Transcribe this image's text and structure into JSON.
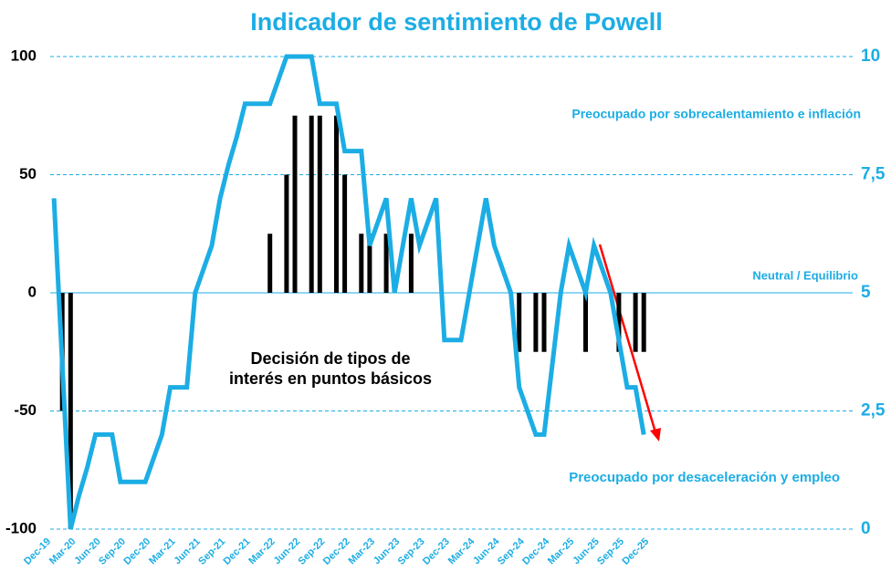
{
  "chart_data": {
    "type": "combo",
    "title": "Indicador de sentimiento de Powell",
    "categories": [
      "Dec-19",
      null,
      null,
      "Mar-20",
      null,
      null,
      "Jun-20",
      null,
      null,
      "Sep-20",
      null,
      null,
      "Dec-20",
      null,
      null,
      "Mar-21",
      null,
      null,
      "Jun-21",
      null,
      null,
      "Sep-21",
      null,
      null,
      "Dec-21",
      null,
      null,
      "Mar-22",
      null,
      null,
      "Jun-22",
      null,
      null,
      "Sep-22",
      null,
      null,
      "Dec-22",
      null,
      null,
      "Mar-23",
      null,
      null,
      "Jun-23",
      null,
      null,
      "Sep-23",
      null,
      null,
      "Dec-23",
      null,
      null,
      "Mar-24",
      null,
      null,
      "Jun-24",
      null,
      null,
      "Sep-24",
      null,
      null,
      "Dec-24",
      null,
      null,
      "Mar-25",
      null,
      null,
      "Jun-25",
      null,
      null,
      "Sep-25",
      null,
      null,
      "Dec-25"
    ],
    "series": [
      {
        "type": "bar",
        "color": "#000000",
        "values": [
          null,
          null,
          -50,
          -100,
          null,
          null,
          null,
          null,
          null,
          null,
          null,
          null,
          null,
          null,
          null,
          null,
          null,
          null,
          null,
          null,
          null,
          null,
          null,
          null,
          null,
          null,
          null,
          25,
          null,
          50,
          75,
          null,
          75,
          75,
          null,
          75,
          50,
          null,
          25,
          25,
          null,
          25,
          null,
          null,
          25,
          null,
          null,
          null,
          null,
          null,
          null,
          null,
          null,
          null,
          null,
          null,
          null,
          -25,
          null,
          -25,
          -25,
          null,
          null,
          null,
          null,
          -25,
          null,
          null,
          null,
          -25,
          null,
          -25,
          -25
        ]
      },
      {
        "type": "line",
        "axis": "y2",
        "color": "#1cade4",
        "values": [
          null,
          7,
          3.5,
          0,
          0.7,
          1.3,
          2,
          2,
          2,
          1,
          1,
          1,
          1,
          1.5,
          2,
          3,
          3,
          3,
          5,
          5.5,
          6,
          7,
          7.7,
          8.3,
          9,
          9,
          9,
          9,
          9.5,
          10,
          10,
          10,
          10,
          9,
          9,
          9,
          8,
          8,
          8,
          6,
          6.5,
          7,
          5,
          6,
          7,
          6,
          6.5,
          7,
          4,
          4,
          4,
          5,
          6,
          7,
          6,
          5.5,
          5,
          3,
          2.5,
          2,
          2,
          3.5,
          5,
          6,
          5.5,
          5,
          6,
          5.5,
          5,
          4,
          3,
          3,
          2
        ]
      }
    ],
    "ylim": [
      -100,
      100
    ],
    "yticks": [
      -100,
      -50,
      0,
      50,
      100
    ],
    "y2lim": [
      0,
      10
    ],
    "y2ticks": [
      0,
      {
        "value": 2.5,
        "label": "2,5"
      },
      5,
      {
        "value": 7.5,
        "label": "7,5"
      },
      10
    ],
    "grid": true,
    "annotations": [
      "Preocupado por sobrecalentamiento e inflación",
      "Neutral / Equilibrio",
      "Decisión de tipos de",
      "interés en puntos básicos",
      "Preocupado por desaceleración y empleo"
    ]
  }
}
